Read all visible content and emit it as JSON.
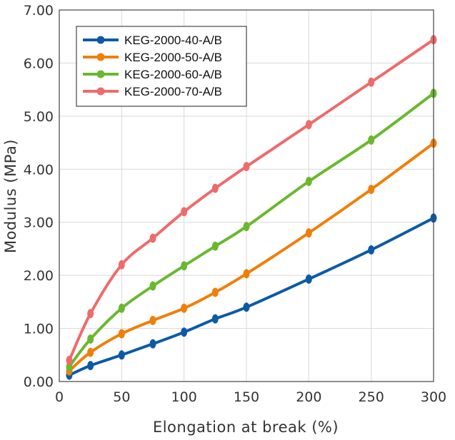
{
  "chart_data": {
    "type": "line",
    "title": "",
    "xlabel": "Elongation at break (%)",
    "ylabel": "Modulus (MPa)",
    "xlim": [
      0,
      300
    ],
    "ylim": [
      0,
      7
    ],
    "x_ticks": [
      0,
      50,
      100,
      150,
      200,
      250,
      300
    ],
    "x_tick_labels": [
      "0",
      "50",
      "100",
      "150",
      "200",
      "250",
      "300"
    ],
    "y_ticks": [
      0,
      1,
      2,
      3,
      4,
      5,
      6,
      7
    ],
    "y_tick_labels": [
      "0.00",
      "1.00",
      "2.00",
      "3.00",
      "4.00",
      "5.00",
      "6.00",
      "7.00"
    ],
    "grid": true,
    "legend_position": "top-left",
    "series": [
      {
        "name": "KEG-2000-40-A/B",
        "color": "#0c5aa6",
        "x": [
          8,
          25,
          50,
          75,
          100,
          125,
          150,
          200,
          250,
          300
        ],
        "y": [
          0.12,
          0.3,
          0.5,
          0.71,
          0.93,
          1.18,
          1.4,
          1.93,
          2.48,
          3.08
        ]
      },
      {
        "name": "KEG-2000-50-A/B",
        "color": "#f07f0a",
        "x": [
          8,
          25,
          50,
          75,
          100,
          125,
          150,
          200,
          250,
          300
        ],
        "y": [
          0.2,
          0.55,
          0.9,
          1.15,
          1.38,
          1.68,
          2.03,
          2.8,
          3.62,
          4.49
        ]
      },
      {
        "name": "KEG-2000-60-A/B",
        "color": "#6ab82f",
        "x": [
          8,
          25,
          50,
          75,
          100,
          125,
          150,
          200,
          250,
          300
        ],
        "y": [
          0.28,
          0.8,
          1.38,
          1.8,
          2.18,
          2.55,
          2.92,
          3.77,
          4.55,
          5.43
        ]
      },
      {
        "name": "KEG-2000-70-A/B",
        "color": "#ee6b6b",
        "x": [
          8,
          25,
          50,
          75,
          100,
          125,
          150,
          200,
          250,
          300
        ],
        "y": [
          0.4,
          1.28,
          2.2,
          2.7,
          3.2,
          3.64,
          4.05,
          4.84,
          5.64,
          6.44
        ]
      }
    ]
  }
}
